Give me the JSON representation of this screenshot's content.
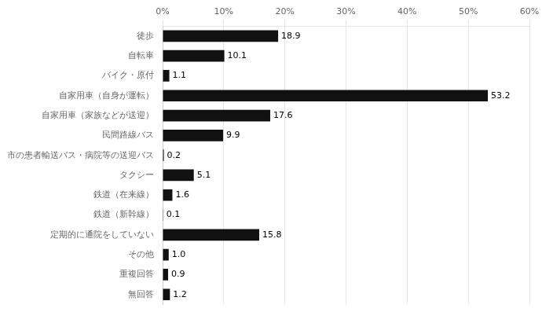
{
  "chart_data": {
    "type": "bar",
    "orientation": "horizontal",
    "categories": [
      "徒歩",
      "自転車",
      "バイク・原付",
      "自家用車（自身が運転）",
      "自家用車（家族などが送迎）",
      "民間路線バス",
      "市の患者輸送バス・病院等の送迎バス",
      "タクシー",
      "鉄道（在来線）",
      "鉄道（新幹線）",
      "定期的に通院をしていない",
      "その他",
      "重複回答",
      "無回答"
    ],
    "values": [
      18.9,
      10.1,
      1.1,
      53.2,
      17.6,
      9.9,
      0.2,
      5.1,
      1.6,
      0.1,
      15.8,
      1.0,
      0.9,
      1.2
    ],
    "value_labels": [
      "18.9",
      "10.1",
      "1.1",
      "53.2",
      "17.6",
      "9.9",
      "0.2",
      "5.1",
      "1.6",
      "0.1",
      "15.8",
      "1.0",
      "0.9",
      "1.2"
    ],
    "color": "#111111",
    "xlim": [
      0,
      60
    ],
    "xticks": [
      {
        "value": 0,
        "label": "0%"
      },
      {
        "value": 10,
        "label": "10%"
      },
      {
        "value": 20,
        "label": "20%"
      },
      {
        "value": 30,
        "label": "30%"
      },
      {
        "value": 40,
        "label": "40%"
      },
      {
        "value": 50,
        "label": "50%"
      },
      {
        "value": 60,
        "label": "60%"
      }
    ],
    "grid": true,
    "data_labels": true
  }
}
